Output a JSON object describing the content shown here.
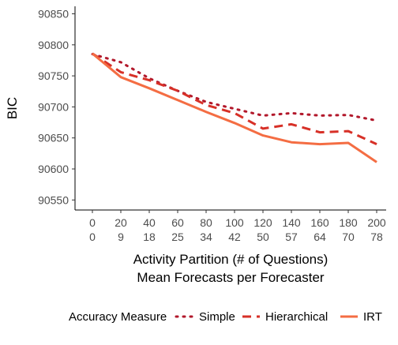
{
  "chart_data": {
    "type": "line",
    "title": "",
    "ylabel": "BIC",
    "xlabel_lines": [
      "Activity Partition (# of Questions)",
      "Mean Forecasts per Forecaster"
    ],
    "x": [
      0,
      20,
      40,
      60,
      80,
      100,
      120,
      140,
      160,
      180,
      200
    ],
    "x_tick_labels_row1": [
      "0",
      "20",
      "40",
      "60",
      "80",
      "100",
      "120",
      "140",
      "160",
      "180",
      "200"
    ],
    "x_tick_labels_row2": [
      "0",
      "9",
      "18",
      "25",
      "34",
      "42",
      "50",
      "57",
      "64",
      "70",
      "78"
    ],
    "xlim": [
      0,
      200
    ],
    "ylim": [
      90540,
      90860
    ],
    "y_ticks": [
      90550,
      90600,
      90650,
      90700,
      90750,
      90800,
      90850
    ],
    "grid": false,
    "legend": {
      "title": "Accuracy Measure",
      "position": "bottom",
      "entries": [
        "Simple",
        "Hierarchical",
        "IRT"
      ]
    },
    "series": [
      {
        "name": "Simple",
        "style": "dotted",
        "color": "#b2182b",
        "values": [
          90785,
          90772,
          90746,
          90726,
          90708,
          90697,
          90686,
          90690,
          90686,
          90687,
          90678
        ]
      },
      {
        "name": "Hierarchical",
        "style": "dashed",
        "color": "#d73027",
        "values": [
          90786,
          90756,
          90743,
          90726,
          90703,
          90690,
          90665,
          90672,
          90659,
          90661,
          90640
        ]
      },
      {
        "name": "IRT",
        "style": "solid",
        "color": "#f46d43",
        "values": [
          90786,
          90748,
          90730,
          90711,
          90692,
          90674,
          90654,
          90643,
          90640,
          90642,
          90611
        ]
      }
    ]
  }
}
